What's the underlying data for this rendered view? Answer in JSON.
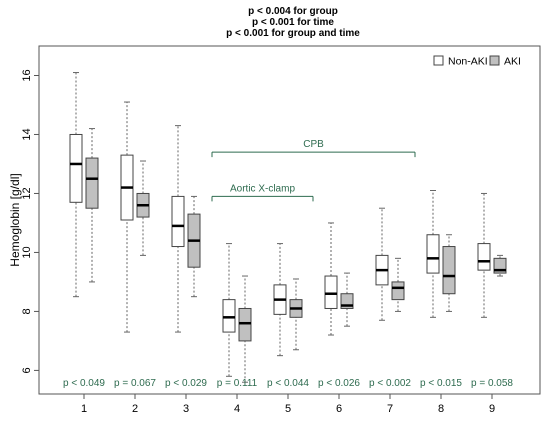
{
  "chart_data": {
    "type": "boxplot",
    "title_lines": [
      "p < 0.004 for group",
      "p < 0.001 for time",
      "p < 0.001 for group and time"
    ],
    "xlabel": "",
    "ylabel": "Hemoglobin [g/dl]",
    "categories": [
      "1",
      "2",
      "3",
      "4",
      "5",
      "6",
      "7",
      "8",
      "9"
    ],
    "y_ticks": [
      6,
      8,
      10,
      12,
      14,
      16
    ],
    "ylim": [
      5.2,
      17.0
    ],
    "grid": false,
    "legend_position": "top-right",
    "series": [
      {
        "name": "Non-AKI",
        "color": "#ffffff",
        "boxes": [
          {
            "min": 8.5,
            "q1": 11.7,
            "median": 13.0,
            "q3": 14.0,
            "max": 16.1
          },
          {
            "min": 7.3,
            "q1": 11.1,
            "median": 12.2,
            "q3": 13.3,
            "max": 15.1
          },
          {
            "min": 7.3,
            "q1": 10.2,
            "median": 10.9,
            "q3": 11.9,
            "max": 14.3
          },
          {
            "min": 5.8,
            "q1": 7.3,
            "median": 7.8,
            "q3": 8.4,
            "max": 10.3
          },
          {
            "min": 6.5,
            "q1": 7.9,
            "median": 8.4,
            "q3": 8.9,
            "max": 10.3
          },
          {
            "min": 7.2,
            "q1": 8.1,
            "median": 8.6,
            "q3": 9.2,
            "max": 11.0
          },
          {
            "min": 7.7,
            "q1": 8.9,
            "median": 9.4,
            "q3": 9.9,
            "max": 11.5
          },
          {
            "min": 7.8,
            "q1": 9.3,
            "median": 9.8,
            "q3": 10.6,
            "max": 12.1
          },
          {
            "min": 7.8,
            "q1": 9.4,
            "median": 9.7,
            "q3": 10.3,
            "max": 12.0
          }
        ]
      },
      {
        "name": "AKI",
        "color": "#c0c0c0",
        "boxes": [
          {
            "min": 9.0,
            "q1": 11.5,
            "median": 12.5,
            "q3": 13.2,
            "max": 14.2
          },
          {
            "min": 9.9,
            "q1": 11.2,
            "median": 11.6,
            "q3": 12.0,
            "max": 13.1
          },
          {
            "min": 8.5,
            "q1": 9.5,
            "median": 10.4,
            "q3": 11.3,
            "max": 11.9
          },
          {
            "min": 5.6,
            "q1": 7.0,
            "median": 7.6,
            "q3": 8.1,
            "max": 9.2
          },
          {
            "min": 6.7,
            "q1": 7.8,
            "median": 8.1,
            "q3": 8.4,
            "max": 9.1
          },
          {
            "min": 7.5,
            "q1": 8.1,
            "median": 8.2,
            "q3": 8.6,
            "max": 9.3
          },
          {
            "min": 8.0,
            "q1": 8.4,
            "median": 8.8,
            "q3": 9.0,
            "max": 9.8
          },
          {
            "min": 8.0,
            "q1": 8.6,
            "median": 9.2,
            "q3": 10.2,
            "max": 10.6
          },
          {
            "min": 9.2,
            "q1": 9.3,
            "median": 9.4,
            "q3": 9.8,
            "max": 9.9
          }
        ]
      }
    ],
    "p_values": [
      "p < 0.049",
      "p = 0.067",
      "p < 0.029",
      "p = 0.111",
      "p < 0.044",
      "p < 0.026",
      "p < 0.002",
      "p < 0.015",
      "p = 0.058"
    ],
    "annotations": [
      {
        "label": "CPB",
        "from_category": "4",
        "to_category": "7",
        "y": 13.4
      },
      {
        "label": "Aortic X-clamp",
        "from_category": "4",
        "to_category": "5",
        "y": 11.9
      }
    ],
    "colors": {
      "p_value_text": "#2e6b4f",
      "annotation": "#2e6b4f"
    }
  }
}
